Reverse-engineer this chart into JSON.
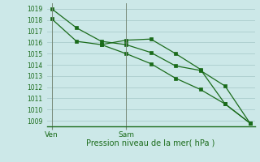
{
  "title": "Pression niveau de la mer( hPa )",
  "background_color": "#cce8e8",
  "grid_color": "#aacccc",
  "line_color": "#1a6b1a",
  "ylim": [
    1008.5,
    1019.5
  ],
  "yticks": [
    1009,
    1010,
    1011,
    1012,
    1013,
    1014,
    1015,
    1016,
    1017,
    1018,
    1019
  ],
  "xlim": [
    -0.2,
    8.2
  ],
  "ven_x": 0,
  "sam_x": 3,
  "line1_x": [
    0,
    1,
    2,
    3,
    4,
    5,
    6,
    7,
    8
  ],
  "line1_y": [
    1019.0,
    1017.3,
    1016.1,
    1015.8,
    1015.1,
    1013.9,
    1013.5,
    1012.1,
    1008.8
  ],
  "line2_x": [
    0,
    1,
    2,
    3,
    4,
    5,
    6,
    7,
    8
  ],
  "line2_y": [
    1018.1,
    1016.1,
    1015.8,
    1016.2,
    1016.3,
    1015.0,
    1013.6,
    1010.5,
    1008.8
  ],
  "line3_x": [
    2,
    3,
    4,
    5,
    6,
    7,
    8
  ],
  "line3_y": [
    1015.8,
    1015.0,
    1014.1,
    1012.8,
    1011.8,
    1010.5,
    1008.8
  ],
  "marker_size": 2.5,
  "linewidth": 0.9,
  "ytick_fontsize": 5.5,
  "xtick_fontsize": 6.5,
  "xlabel_fontsize": 7
}
